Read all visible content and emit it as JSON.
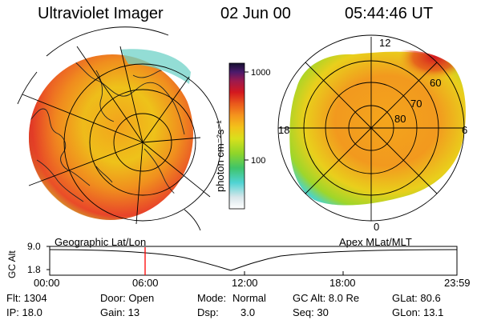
{
  "header": {
    "instrument": "Ultraviolet Imager",
    "date": "02 Jun 00",
    "time": "05:44:46 UT"
  },
  "colorbar": {
    "unit_label": "photon cm⁻²s⁻¹",
    "ticks": [
      "1000",
      "100"
    ],
    "scale": "log"
  },
  "left_panel": {
    "label": "Geographic Lat/Lon"
  },
  "right_panel": {
    "label": "Apex MLat/MLT",
    "mlt_labels": [
      "12",
      "18",
      "6",
      "0"
    ],
    "mlat_labels": [
      "60",
      "70",
      "80"
    ]
  },
  "timeline": {
    "y_label": "GC Alt",
    "y_ticks": [
      "9.0",
      "1.8"
    ],
    "x_ticks": [
      "00:00",
      "06:00",
      "12:00",
      "18:00",
      "23:59"
    ],
    "marker_time": "05:44:46",
    "marker_color": "#ff0000"
  },
  "info": {
    "flt": "Flt: 1304",
    "ip": "IP: 18.0",
    "door": "Door: Open",
    "gain": "Gain: 13",
    "mode_label": "Mode:",
    "mode_value": "Normal",
    "dsp_label": "Dsp:",
    "dsp_value": "3.0",
    "gcalt": "GC Alt: 8.0 Re",
    "seq": "Seq: 30",
    "glat": "GLat: 80.6",
    "glon": "GLon: 13.1"
  },
  "colors": {
    "red": "#d42a1f",
    "orange": "#f28a1e",
    "yellow": "#e9d11b",
    "green": "#9ed62a",
    "cyan": "#3fd3d0"
  }
}
